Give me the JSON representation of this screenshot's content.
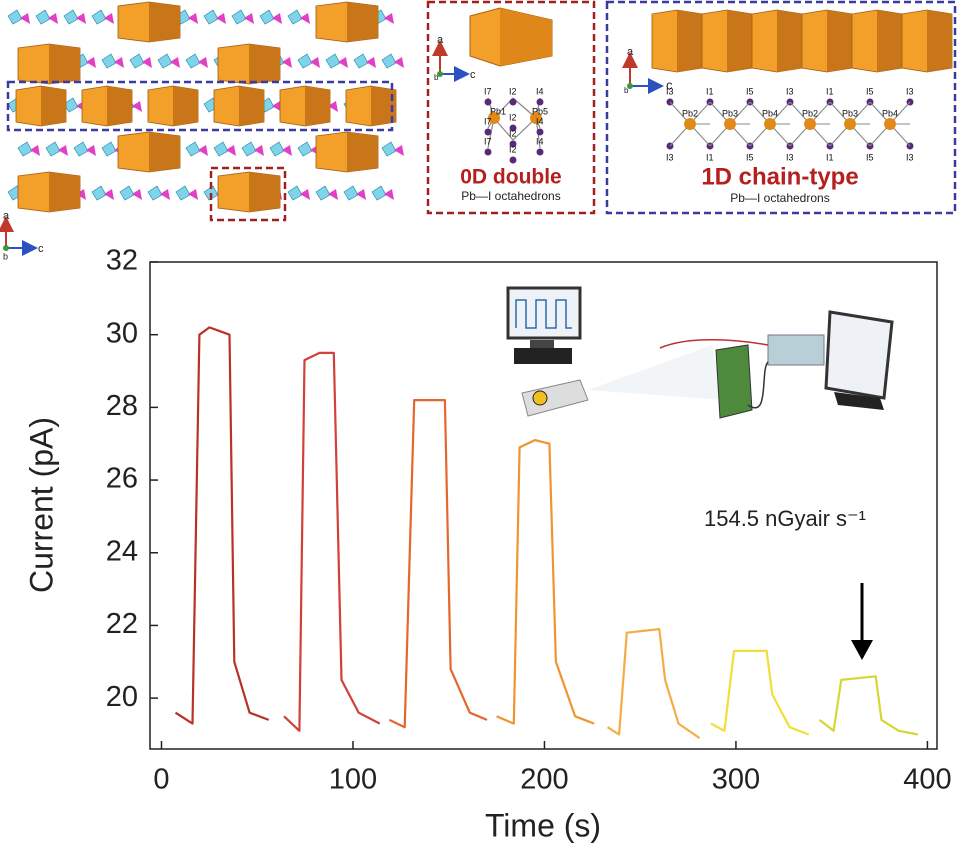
{
  "structure": {
    "left_axes": {
      "a": "a",
      "b": "b",
      "c": "c"
    },
    "zero_d": {
      "axes": {
        "a": "a",
        "b": "b",
        "c": "c"
      },
      "title": "0D double",
      "subtitle": "Pb—I octahedrons",
      "atoms": [
        "I7",
        "I2",
        "I4",
        "Pb1",
        "I2",
        "Pb5",
        "I7",
        "I2",
        "I4",
        "I7",
        "I2",
        "I4"
      ]
    },
    "one_d": {
      "axes": {
        "a": "a",
        "b": "b",
        "c": "c"
      },
      "title": "1D chain-type",
      "subtitle": "Pb—I octahedrons",
      "atoms_top": [
        "I3",
        "I1",
        "I5",
        "I3",
        "I1",
        "I5",
        "I3"
      ],
      "atoms_pb": [
        "Pb2",
        "Pb3",
        "Pb4",
        "Pb2",
        "Pb3",
        "Pb4"
      ],
      "atoms_bottom": [
        "I3",
        "I1",
        "I5",
        "I3",
        "I1",
        "I5",
        "I3"
      ]
    }
  },
  "chart_data": {
    "type": "line",
    "xlabel": "Time (s)",
    "ylabel": "Current (pA)",
    "annotation": "154.5 nGyair s⁻¹",
    "xlim": [
      -6,
      405
    ],
    "ylim": [
      18.6,
      32
    ],
    "xticks": [
      0,
      100,
      200,
      300,
      400
    ],
    "yticks": [
      20,
      22,
      24,
      26,
      28,
      30,
      32
    ],
    "series": [
      {
        "color": "#b83228",
        "x": [
          7.3,
          16.2,
          19.8,
          25,
          35.5,
          38,
          46,
          56
        ],
        "values": [
          19.6,
          19.3,
          30.0,
          30.2,
          30.0,
          21.0,
          19.6,
          19.4
        ]
      },
      {
        "color": "#d2403a",
        "x": [
          64,
          72,
          74.7,
          82.5,
          90,
          94,
          103,
          114
        ],
        "values": [
          19.5,
          19.1,
          29.3,
          29.5,
          29.5,
          20.5,
          19.6,
          19.3
        ]
      },
      {
        "color": "#e5672f",
        "x": [
          119,
          127,
          132,
          148,
          151,
          161,
          170
        ],
        "values": [
          19.4,
          19.2,
          28.2,
          28.2,
          20.8,
          19.6,
          19.4
        ]
      },
      {
        "color": "#ee9430",
        "x": [
          175,
          184,
          187,
          195,
          202.6,
          206,
          216,
          226
        ],
        "values": [
          19.5,
          19.3,
          26.9,
          27.1,
          27.0,
          21.0,
          19.5,
          19.3
        ]
      },
      {
        "color": "#f2ad45",
        "x": [
          233,
          239,
          243,
          260,
          263,
          270,
          281
        ],
        "values": [
          19.2,
          19.0,
          21.8,
          21.9,
          20.5,
          19.3,
          18.9
        ]
      },
      {
        "color": "#f0df3a",
        "x": [
          287,
          294,
          299,
          316,
          319,
          328,
          338
        ],
        "values": [
          19.3,
          19.1,
          21.3,
          21.3,
          20.1,
          19.2,
          19.0
        ]
      },
      {
        "color": "#d6d636",
        "x": [
          343.6,
          351,
          355,
          373,
          376,
          385,
          395
        ],
        "values": [
          19.4,
          19.1,
          20.5,
          20.6,
          19.4,
          19.1,
          19.0
        ]
      }
    ]
  }
}
